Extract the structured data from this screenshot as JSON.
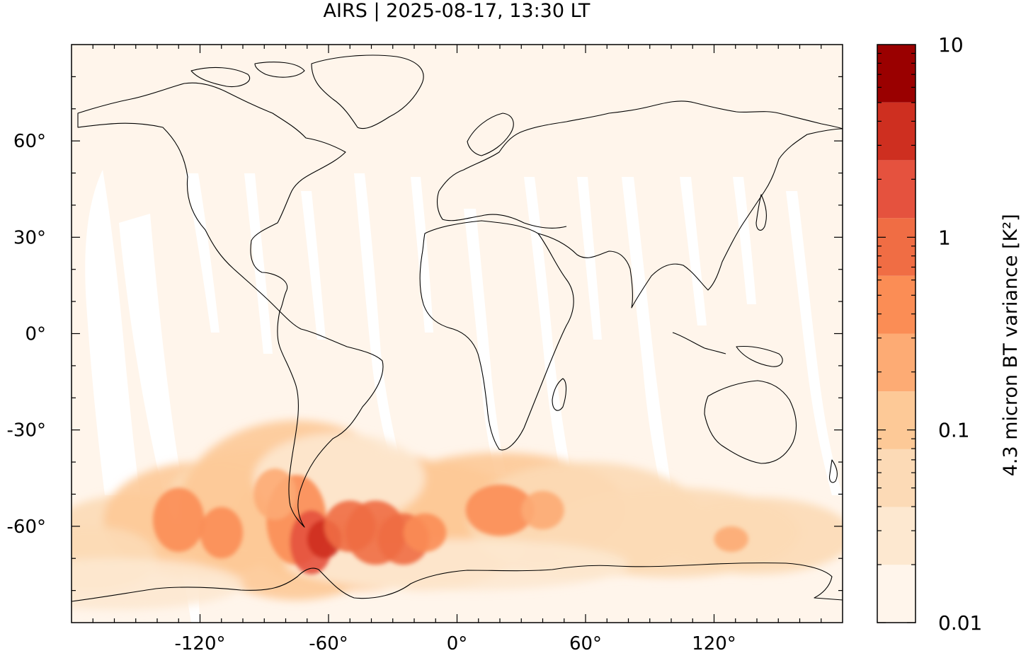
{
  "title": "AIRS | 2025-08-17, 13:30 LT",
  "map": {
    "projection": "equirectangular",
    "lon_range": [
      -180,
      180
    ],
    "lat_range": [
      -90,
      90
    ],
    "ocean_color": "#fff5eb",
    "gap_color": "#ffffff",
    "coastline_color": "#000000",
    "x_ticks": [
      {
        "value": -120,
        "label": "-120°"
      },
      {
        "value": -60,
        "label": "-60°"
      },
      {
        "value": 0,
        "label": "0°"
      },
      {
        "value": 60,
        "label": "60°"
      },
      {
        "value": 120,
        "label": "120°"
      }
    ],
    "y_ticks": [
      {
        "value": 60,
        "label": "60°"
      },
      {
        "value": 30,
        "label": "30°"
      },
      {
        "value": 0,
        "label": "0°"
      },
      {
        "value": -30,
        "label": "-30°"
      },
      {
        "value": -60,
        "label": "-60°"
      }
    ]
  },
  "colorbar": {
    "label": "4.3 micron BT variance [K²]",
    "scale": "log",
    "range": [
      0.01,
      10
    ],
    "tick_labels": [
      {
        "value": 10,
        "label": "10"
      },
      {
        "value": 1,
        "label": "1"
      },
      {
        "value": 0.1,
        "label": "0.1"
      },
      {
        "value": 0.01,
        "label": "0.01"
      }
    ],
    "levels": [
      {
        "upper": 0.02,
        "color": "#fff5eb"
      },
      {
        "upper": 0.0316,
        "color": "#fde8d0"
      },
      {
        "upper": 0.05,
        "color": "#fcdab6"
      },
      {
        "upper": 0.1,
        "color": "#fdc997"
      },
      {
        "upper": 0.2,
        "color": "#fdab74"
      },
      {
        "upper": 0.5,
        "color": "#fb8d55"
      },
      {
        "upper": 1.0,
        "color": "#f06d44"
      },
      {
        "upper": 2.0,
        "color": "#e5523e"
      },
      {
        "upper": 5.0,
        "color": "#ce2f20"
      },
      {
        "upper": 10.0,
        "color": "#9a0000"
      }
    ]
  }
}
